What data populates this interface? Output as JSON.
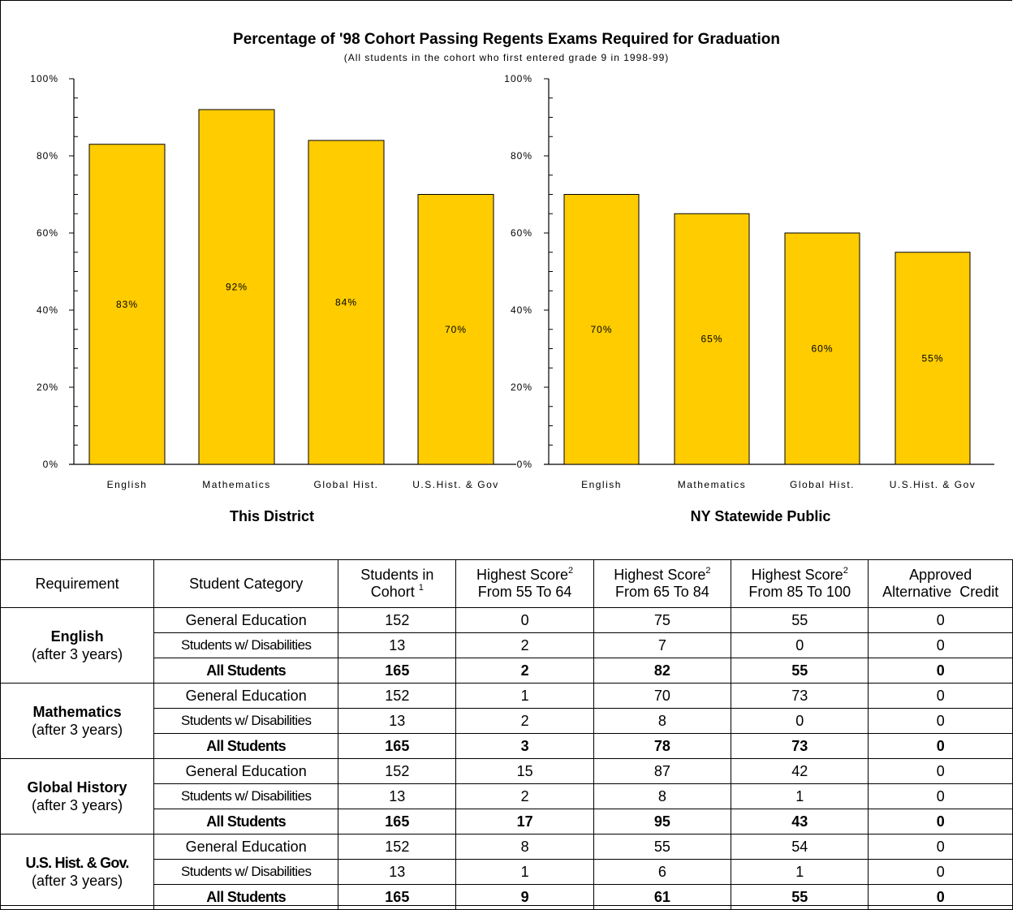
{
  "chart_data": {
    "type": "bar",
    "title": "Percentage of '98 Cohort Passing Regents Exams Required for Graduation",
    "subtitle": "(All students in the cohort who first entered grade 9 in 1998-99)",
    "categories": [
      "English",
      "Mathematics",
      "Global Hist.",
      "U.S.Hist. & Gov"
    ],
    "ylim": [
      0,
      100
    ],
    "yticks": [
      "0%",
      "20%",
      "40%",
      "60%",
      "80%",
      "100%"
    ],
    "bar_color": "#FFCC00",
    "grid": false,
    "panels": [
      {
        "name": "This District",
        "values": [
          83,
          92,
          84,
          70
        ],
        "labels": [
          "83%",
          "92%",
          "84%",
          "70%"
        ]
      },
      {
        "name": "NY Statewide Public",
        "values": [
          70,
          65,
          60,
          55
        ],
        "labels": [
          "70%",
          "65%",
          "60%",
          "55%"
        ]
      }
    ]
  },
  "table": {
    "headers": {
      "requirement": "Requirement",
      "category": "Student Category",
      "cohort_line1": "Students in",
      "cohort_line2": "Cohort",
      "cohort_sup": "1",
      "hs_label": "Highest Score",
      "hs_sup": "2",
      "range1": "From 55 To 64",
      "range2": "From 65 To 84",
      "range3": "From 85 To 100",
      "alt_line1": "Approved",
      "alt_line2": "Alternative  Credit"
    },
    "groups": [
      {
        "name": "English",
        "note": "(after 3 years)",
        "rows": [
          {
            "category": "General Education",
            "values": [
              "152",
              "0",
              "75",
              "55",
              "0"
            ]
          },
          {
            "category": "Students w/ Disabilities",
            "values": [
              "13",
              "2",
              "7",
              "0",
              "0"
            ]
          },
          {
            "category": "All Students",
            "values": [
              "165",
              "2",
              "82",
              "55",
              "0"
            ]
          }
        ]
      },
      {
        "name": "Mathematics",
        "note": "(after 3 years)",
        "rows": [
          {
            "category": "General Education",
            "values": [
              "152",
              "1",
              "70",
              "73",
              "0"
            ]
          },
          {
            "category": "Students w/ Disabilities",
            "values": [
              "13",
              "2",
              "8",
              "0",
              "0"
            ]
          },
          {
            "category": "All Students",
            "values": [
              "165",
              "3",
              "78",
              "73",
              "0"
            ]
          }
        ]
      },
      {
        "name": "Global History",
        "note": "(after 3 years)",
        "rows": [
          {
            "category": "General Education",
            "values": [
              "152",
              "15",
              "87",
              "42",
              "0"
            ]
          },
          {
            "category": "Students w/ Disabilities",
            "values": [
              "13",
              "2",
              "8",
              "1",
              "0"
            ]
          },
          {
            "category": "All Students",
            "values": [
              "165",
              "17",
              "95",
              "43",
              "0"
            ]
          }
        ]
      },
      {
        "name": "U.S. Hist. & Gov.",
        "note": "(after 3 years)",
        "rows": [
          {
            "category": "General Education",
            "values": [
              "152",
              "8",
              "55",
              "54",
              "0"
            ]
          },
          {
            "category": "Students w/ Disabilities",
            "values": [
              "13",
              "1",
              "6",
              "1",
              "0"
            ]
          },
          {
            "category": "All Students",
            "values": [
              "165",
              "9",
              "61",
              "55",
              "0"
            ]
          }
        ]
      }
    ]
  }
}
